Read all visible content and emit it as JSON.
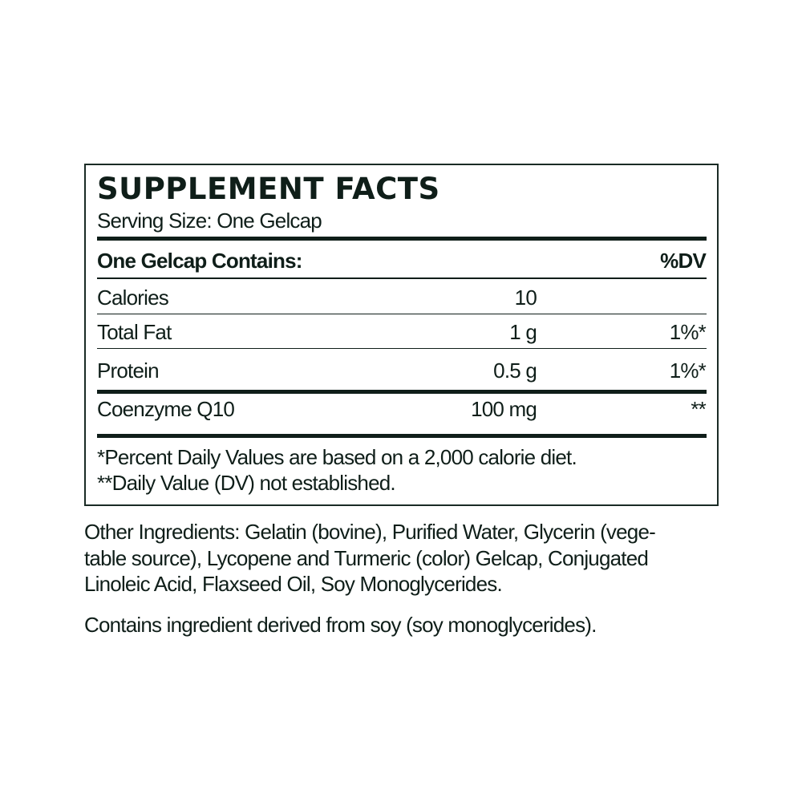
{
  "label": {
    "title": "SUPPLEMENT FACTS",
    "serving_size": "Serving Size: One Gelcap",
    "header_left": "One Gelcap Contains:",
    "header_right": "%DV",
    "rows": [
      {
        "name": "Calories",
        "amount": "10",
        "dv": ""
      },
      {
        "name": "Total Fat",
        "amount": "1 g",
        "dv": "1%*"
      },
      {
        "name": "Protein",
        "amount": "0.5 g",
        "dv": "1%*"
      },
      {
        "name": "Coenzyme Q10",
        "amount": "100 mg",
        "dv": "**"
      }
    ],
    "footnotes": [
      "*Percent Daily Values are based on a 2,000 calorie diet.",
      "**Daily Value (DV) not established."
    ]
  },
  "other_ingredients": [
    "Other Ingredients: Gelatin (bovine), Purified Water, Glycerin (vege-",
    "table source), Lycopene and Turmeric (color) Gelcap, Conjugated",
    "Linoleic Acid, Flaxseed Oil, Soy Monoglycerides."
  ],
  "allergen_statement": "Contains ingredient derived from soy (soy monoglycerides).",
  "colors": {
    "text": "#0f1e19",
    "border": "#1a2b25"
  }
}
